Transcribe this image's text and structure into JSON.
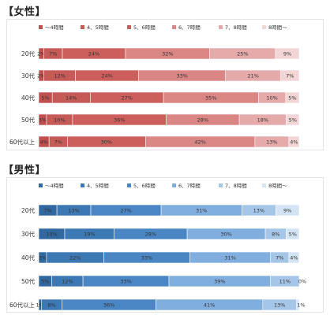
{
  "chart_data": [
    {
      "type": "bar",
      "orientation": "horizontal",
      "stacked": true,
      "percent": true,
      "title": "【女性】",
      "categories": [
        "20代",
        "30代",
        "40代",
        "50代",
        "60代以上"
      ],
      "series": [
        {
          "name": "～4時間",
          "color": "#c0504d",
          "values": [
            2,
            2,
            5,
            3,
            4
          ]
        },
        {
          "name": "4、5時間",
          "color": "#c55a57",
          "values": [
            7,
            12,
            14,
            10,
            7
          ]
        },
        {
          "name": "5、6時間",
          "color": "#cc5f5c",
          "values": [
            24,
            24,
            27,
            36,
            30
          ]
        },
        {
          "name": "6、7時間",
          "color": "#d98685",
          "values": [
            32,
            33,
            35,
            28,
            42
          ]
        },
        {
          "name": "7、8時間",
          "color": "#e6aaaa",
          "values": [
            25,
            21,
            10,
            18,
            13
          ]
        },
        {
          "name": "8時間～",
          "color": "#f2d5d5",
          "values": [
            9,
            7,
            5,
            5,
            4
          ]
        }
      ],
      "labels": [
        [
          "2%",
          "7%",
          "24%",
          "32%",
          "25%",
          "9%"
        ],
        [
          "2%",
          "12%",
          "24%",
          "33%",
          "21%",
          "7%"
        ],
        [
          "5%",
          "14%",
          "27%",
          "35%",
          "10%",
          "5%"
        ],
        [
          "3%",
          "10%",
          "36%",
          "28%",
          "18%",
          "5%"
        ],
        [
          "4%",
          "7%",
          "30%",
          "42%",
          "13%",
          "4%"
        ]
      ],
      "legend": "top",
      "grid": false
    },
    {
      "type": "bar",
      "orientation": "horizontal",
      "stacked": true,
      "percent": true,
      "title": "【男性】",
      "categories": [
        "20代",
        "30代",
        "40代",
        "50代",
        "60代以上"
      ],
      "series": [
        {
          "name": "～4時間",
          "color": "#31689f",
          "values": [
            7,
            10,
            3,
            5,
            1
          ]
        },
        {
          "name": "4、5時間",
          "color": "#3c78b4",
          "values": [
            13,
            19,
            22,
            12,
            8
          ]
        },
        {
          "name": "5、6時間",
          "color": "#4a86c4",
          "values": [
            27,
            28,
            33,
            33,
            36
          ]
        },
        {
          "name": "6、7時間",
          "color": "#80aede",
          "values": [
            31,
            30,
            31,
            39,
            41
          ]
        },
        {
          "name": "7、8時間",
          "color": "#a6c6e8",
          "values": [
            13,
            8,
            7,
            11,
            13
          ]
        },
        {
          "name": "8時間～",
          "color": "#d4e4f4",
          "values": [
            9,
            5,
            4,
            0,
            1
          ]
        }
      ],
      "labels": [
        [
          "7%",
          "13%",
          "27%",
          "31%",
          "13%",
          "9%"
        ],
        [
          "10%",
          "19%",
          "28%",
          "30%",
          "8%",
          "5%"
        ],
        [
          "3%",
          "22%",
          "33%",
          "31%",
          "7%",
          "4%"
        ],
        [
          "5%",
          "12%",
          "33%",
          "39%",
          "11%",
          "0%"
        ],
        [
          "1%",
          "8%",
          "36%",
          "41%",
          "13%",
          "1%"
        ]
      ],
      "legend": "top",
      "grid": false
    }
  ]
}
